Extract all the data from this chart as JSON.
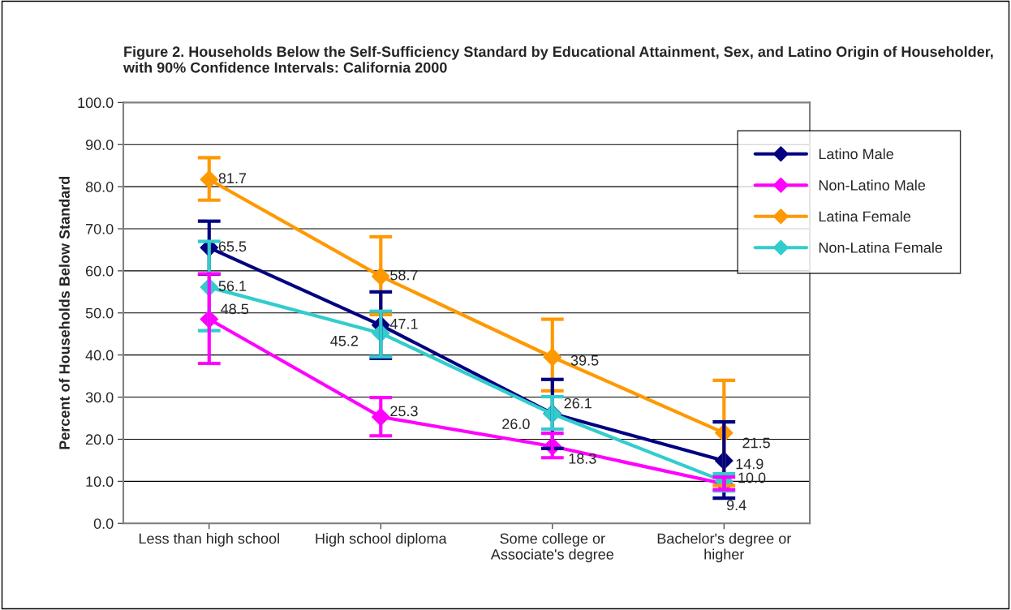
{
  "chart_data": {
    "type": "line",
    "title": "Figure 2. Households Below the Self-Sufficiency Standard by Educational Attainment, Sex, and Latino Origin of Householder, with 90% Confidence Intervals: California 2000",
    "ylabel": "Percent of Households Below Standard",
    "categories": [
      "Less than high school",
      "High school diploma",
      "Some college or Associate's degree",
      "Bachelor's degree or higher"
    ],
    "series": [
      {
        "name": "Latino Male",
        "color": "#000080",
        "values": [
          65.5,
          47.1,
          26.1,
          14.9
        ],
        "errors": [
          [
            59.2,
            71.8
          ],
          [
            39.2,
            55.0
          ],
          [
            17.8,
            34.2
          ],
          [
            6.0,
            24.1
          ]
        ],
        "value_labels": [
          "65.5",
          "47.1",
          "26.1",
          "14.9"
        ]
      },
      {
        "name": "Non-Latino Male",
        "color": "#ff00ff",
        "values": [
          48.5,
          25.3,
          18.3,
          9.4
        ],
        "errors": [
          [
            38.0,
            59.3
          ],
          [
            20.8,
            29.9
          ],
          [
            15.6,
            21.4
          ],
          [
            8.0,
            11.0
          ]
        ],
        "value_labels": [
          "48.5",
          "25.3",
          "18.3",
          "9.4"
        ]
      },
      {
        "name": "Latina Female",
        "color": "#ff9900",
        "values": [
          81.7,
          58.7,
          39.5,
          21.5
        ],
        "errors": [
          [
            76.8,
            86.9
          ],
          [
            49.6,
            68.1
          ],
          [
            31.5,
            48.5
          ],
          [
            9.0,
            34.0
          ]
        ],
        "value_labels": [
          "81.7",
          "58.7",
          "39.5",
          "21.5"
        ]
      },
      {
        "name": "Non-Latina Female",
        "color": "#33cccc",
        "values": [
          56.1,
          45.2,
          26.0,
          10.0
        ],
        "errors": [
          [
            45.8,
            67.0
          ],
          [
            39.6,
            50.4
          ],
          [
            22.4,
            30.1
          ],
          [
            7.7,
            11.8
          ]
        ],
        "value_labels": [
          "56.1",
          "45.2",
          "26.0",
          "10.0"
        ]
      }
    ],
    "ylim": [
      0,
      100
    ],
    "yticks": [
      {
        "value": 0,
        "label": "0.0"
      },
      {
        "value": 10,
        "label": "10.0"
      },
      {
        "value": 20,
        "label": "20.0"
      },
      {
        "value": 30,
        "label": "30.0"
      },
      {
        "value": 40,
        "label": "40.0"
      },
      {
        "value": 50,
        "label": "50.0"
      },
      {
        "value": 60,
        "label": "60.0"
      },
      {
        "value": 70,
        "label": "70.0"
      },
      {
        "value": 80,
        "label": "80.0"
      },
      {
        "value": 90,
        "label": "90.0"
      },
      {
        "value": 100,
        "label": "100.0"
      }
    ],
    "grid": "y",
    "legend": "top right",
    "marker": "diamond",
    "line_style": "solid"
  }
}
